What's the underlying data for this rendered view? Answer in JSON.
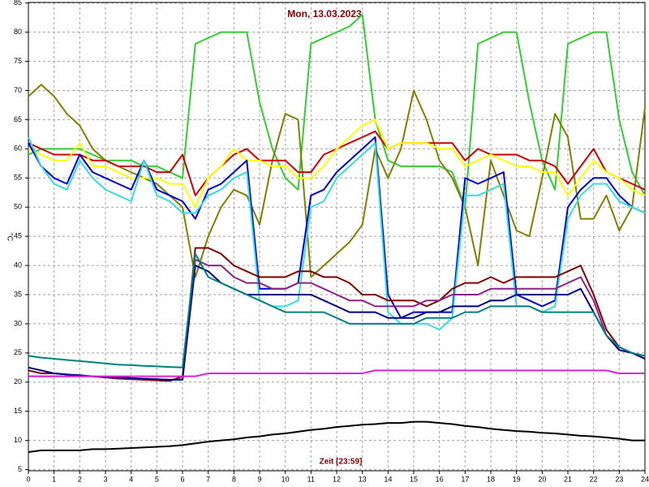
{
  "chart_data": {
    "type": "line",
    "title": "Mon, 13.03.2023",
    "ylabel": "°C",
    "xlabel": "Zeit [23:59]",
    "xlim": [
      0,
      24
    ],
    "ylim": [
      4.8,
      85.1
    ],
    "xticks": [
      0,
      1,
      2,
      3,
      4,
      5,
      6,
      7,
      8,
      9,
      10,
      11,
      12,
      13,
      14,
      15,
      16,
      17,
      18,
      19,
      20,
      21,
      22,
      23,
      24
    ],
    "yticks": [
      5,
      10,
      15,
      20,
      25,
      30,
      35,
      40,
      45,
      50,
      55,
      60,
      65,
      70,
      75,
      80,
      85
    ],
    "grid": true,
    "x": [
      0,
      0.5,
      1,
      1.5,
      2,
      2.5,
      3,
      3.5,
      4,
      4.5,
      5,
      5.5,
      6,
      6.5,
      7,
      7.5,
      8,
      8.5,
      9,
      9.5,
      10,
      10.5,
      11,
      11.5,
      12,
      12.5,
      13,
      13.5,
      14,
      14.5,
      15,
      15.5,
      16,
      16.5,
      17,
      17.5,
      18,
      18.5,
      19,
      19.5,
      20,
      20.5,
      21,
      21.5,
      22,
      22.5,
      23,
      23.5,
      24
    ],
    "series": [
      {
        "color": "#33cc33",
        "values": [
          59,
          60,
          60,
          60,
          60,
          59,
          58,
          58,
          58,
          57,
          57,
          56,
          55,
          78,
          79,
          80,
          80,
          80,
          68,
          60,
          55,
          53,
          78,
          79,
          80,
          81,
          83,
          65,
          58,
          57,
          57,
          57,
          57,
          56,
          50,
          78,
          79,
          80,
          80,
          68,
          58,
          53,
          78,
          79,
          80,
          80,
          65,
          56,
          52
        ]
      },
      {
        "color": "#808000",
        "values": [
          69,
          71,
          69,
          66,
          64,
          60,
          58,
          57,
          56,
          55,
          54,
          52,
          50,
          38,
          45,
          50,
          53,
          52,
          47,
          58,
          66,
          65,
          38,
          40,
          42,
          44,
          47,
          60,
          55,
          60,
          70,
          65,
          58,
          55,
          50,
          40,
          58,
          52,
          46,
          45,
          55,
          66,
          62,
          48,
          48,
          52,
          46,
          50,
          67
        ]
      },
      {
        "color": "#cc0000",
        "values": [
          61,
          60,
          59,
          59,
          59,
          58,
          58,
          57,
          57,
          57,
          56,
          56,
          59,
          52,
          55,
          57,
          59,
          60,
          58,
          58,
          58,
          56,
          56,
          59,
          60,
          61,
          62,
          63,
          60,
          61,
          61,
          61,
          61,
          61,
          58,
          60,
          59,
          59,
          59,
          58,
          58,
          57,
          54,
          57,
          60,
          56,
          55,
          54,
          53
        ]
      },
      {
        "color": "#ffff00",
        "values": [
          60,
          59,
          58,
          58,
          61,
          57,
          57,
          56,
          55,
          55,
          55,
          54,
          54,
          50,
          55,
          57,
          60,
          58,
          58,
          57,
          57,
          55,
          55,
          57,
          60,
          62,
          64,
          65,
          60,
          61,
          61,
          61,
          60,
          60,
          57,
          58,
          59,
          58,
          57,
          57,
          56,
          56,
          52,
          55,
          58,
          56,
          55,
          53,
          52
        ]
      },
      {
        "color": "#0000cc",
        "values": [
          61,
          57,
          55,
          54,
          59,
          56,
          55,
          54,
          53,
          58,
          53,
          52,
          51,
          48,
          53,
          54,
          56,
          58,
          36,
          36,
          36,
          37,
          52,
          53,
          56,
          58,
          60,
          62,
          35,
          31,
          32,
          32,
          32,
          32,
          55,
          54,
          55,
          56,
          35,
          34,
          33,
          34,
          50,
          53,
          55,
          55,
          52,
          50,
          49
        ]
      },
      {
        "color": "#33dddd",
        "values": [
          62,
          57,
          54,
          53,
          58,
          55,
          53,
          52,
          51,
          58,
          52,
          51,
          49,
          49,
          52,
          53,
          55,
          56,
          34,
          33,
          33,
          34,
          50,
          51,
          55,
          57,
          59,
          61,
          32,
          30,
          30,
          30,
          29,
          31,
          52,
          52,
          53,
          54,
          33,
          33,
          32,
          33,
          48,
          52,
          54,
          54,
          51,
          50,
          49
        ]
      },
      {
        "color": "#800000",
        "values": [
          22,
          21.5,
          21.5,
          21.3,
          21,
          21,
          20.8,
          20.6,
          20.5,
          20.4,
          20.3,
          20.2,
          21,
          43,
          43,
          42,
          40,
          39,
          38,
          38,
          38,
          39,
          39,
          38,
          38,
          37,
          35,
          35,
          34,
          34,
          34,
          33,
          34,
          36,
          37,
          37,
          38,
          37,
          38,
          38,
          38,
          38,
          39,
          40,
          35,
          29,
          26,
          25,
          24
        ]
      },
      {
        "color": "#882288",
        "values": [
          21,
          21,
          21,
          21,
          21,
          21,
          20.8,
          20.7,
          20.6,
          20.6,
          20.5,
          20.4,
          20.5,
          41,
          40,
          40,
          38,
          37,
          37,
          36,
          36,
          37,
          37,
          36,
          35,
          34,
          34,
          33,
          33,
          33,
          33,
          34,
          34,
          35,
          35,
          35,
          36,
          36,
          36,
          36,
          36,
          36,
          37,
          38,
          34,
          28,
          26,
          25,
          24
        ]
      },
      {
        "color": "#000080",
        "values": [
          22.5,
          22,
          21.5,
          21.3,
          21.2,
          21,
          20.9,
          20.8,
          20.7,
          20.6,
          20.5,
          20.4,
          20.4,
          40,
          39,
          37,
          36,
          35,
          35,
          35,
          35,
          35,
          35,
          34,
          33,
          32,
          32,
          32,
          31,
          31,
          31,
          32,
          32,
          33,
          33,
          33,
          34,
          34,
          35,
          35,
          35,
          35,
          35,
          36,
          32,
          28,
          25.5,
          25,
          24
        ]
      },
      {
        "color": "#008080",
        "values": [
          24.5,
          24.2,
          24,
          23.8,
          23.6,
          23.4,
          23.2,
          23,
          22.9,
          22.8,
          22.7,
          22.6,
          22.5,
          42,
          38,
          37,
          36,
          35,
          34,
          33,
          32,
          32,
          32,
          32,
          31,
          30,
          30,
          30,
          30,
          30,
          30,
          31,
          31,
          31,
          32,
          32,
          33,
          33,
          33,
          33,
          32,
          32,
          32,
          32,
          32,
          28,
          26,
          25,
          24.5
        ]
      },
      {
        "color": "#dd22dd",
        "values": [
          21,
          21,
          21,
          21,
          21,
          21,
          21,
          21,
          21,
          21,
          21,
          21,
          21,
          21,
          21.5,
          21.5,
          21.5,
          21.5,
          21.5,
          21.5,
          21.5,
          21.5,
          21.5,
          21.5,
          21.5,
          21.5,
          21.5,
          22,
          22,
          22,
          22,
          22,
          22,
          22,
          22,
          22,
          22,
          22,
          22,
          22,
          22,
          22,
          22,
          22,
          22,
          22,
          21.5,
          21.5,
          21.5
        ]
      },
      {
        "color": "#000000",
        "values": [
          8,
          8.3,
          8.3,
          8.3,
          8.3,
          8.5,
          8.5,
          8.6,
          8.7,
          8.8,
          8.9,
          9,
          9.2,
          9.5,
          9.8,
          10,
          10.2,
          10.5,
          10.7,
          11,
          11.2,
          11.5,
          11.8,
          12,
          12.3,
          12.5,
          12.7,
          12.8,
          13,
          13,
          13.2,
          13.2,
          13,
          12.8,
          12.5,
          12.3,
          12,
          11.8,
          11.6,
          11.5,
          11.3,
          11.2,
          11,
          10.8,
          10.7,
          10.5,
          10.3,
          10,
          10
        ]
      }
    ]
  }
}
